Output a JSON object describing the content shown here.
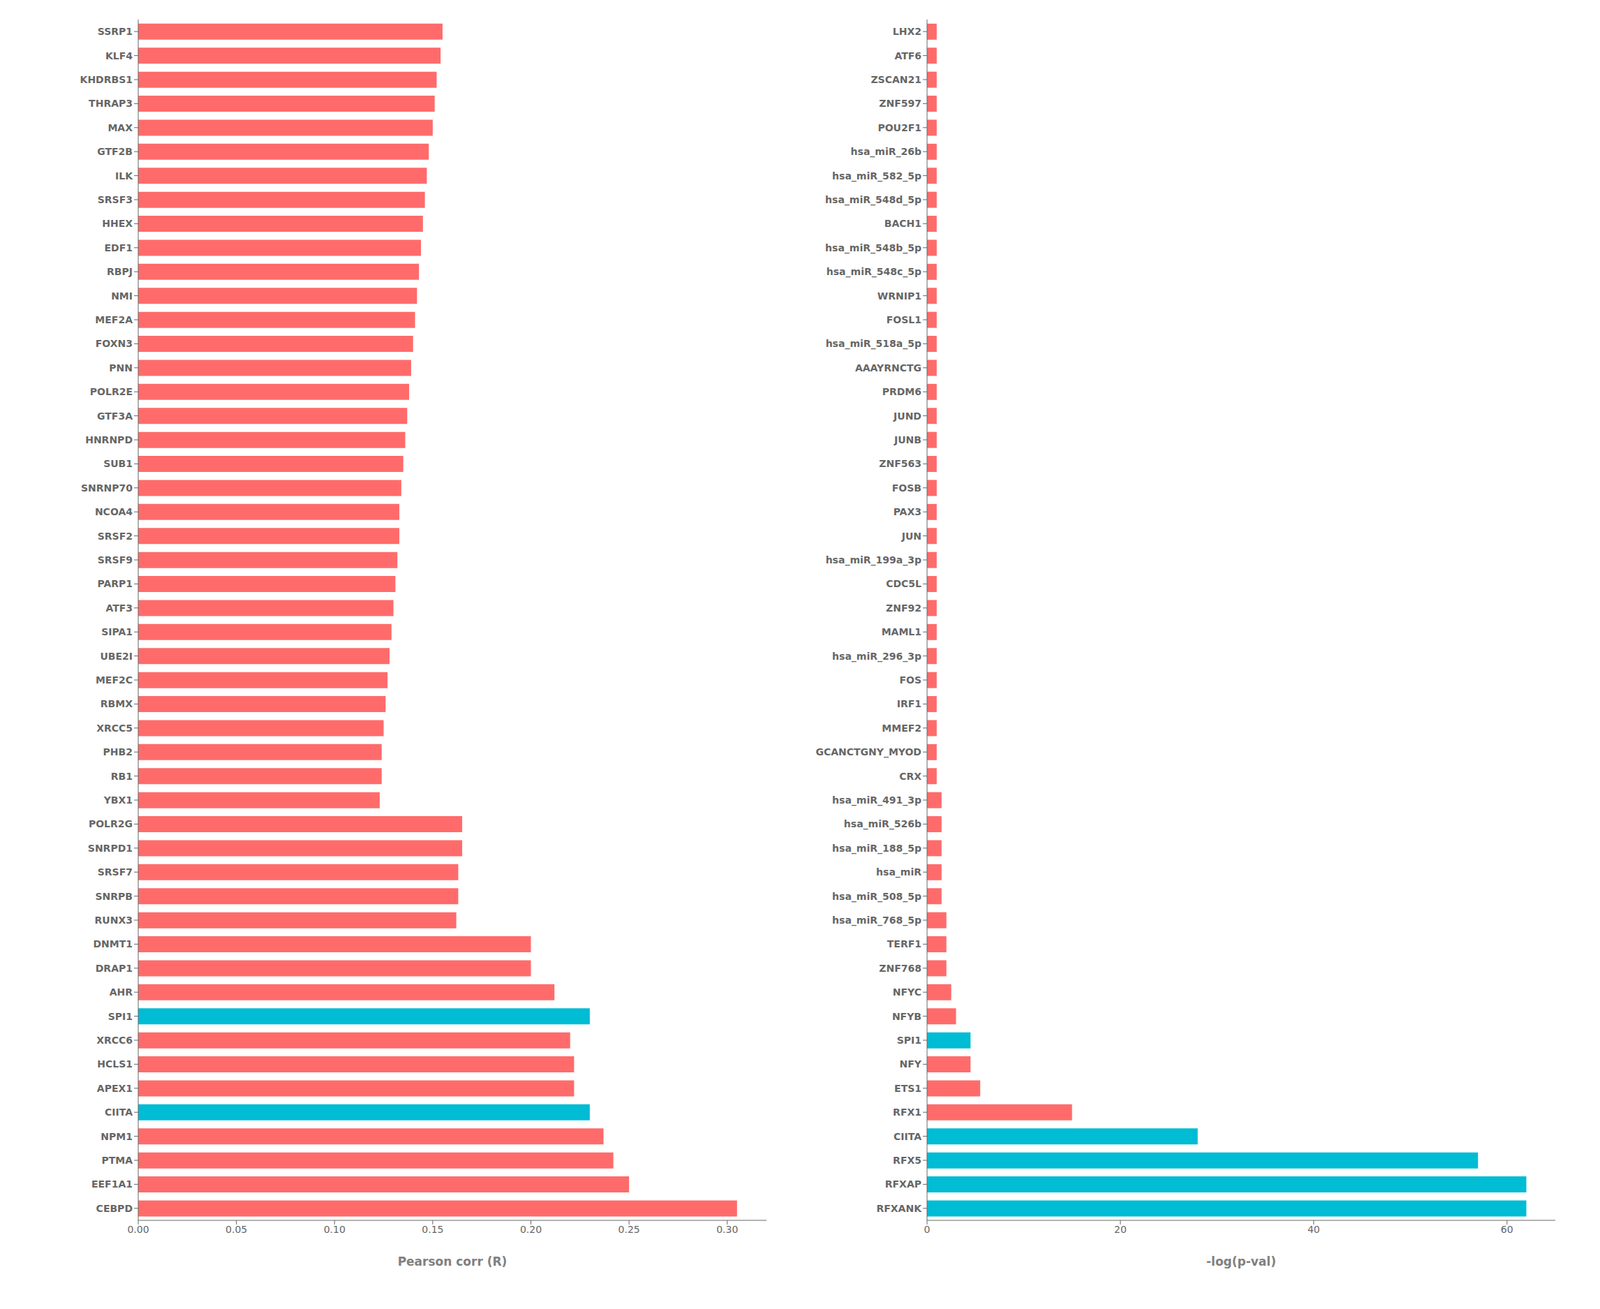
{
  "chart_data": [
    {
      "type": "bar",
      "orientation": "horizontal",
      "grid": false,
      "categories": [
        "SSRP1",
        "KLF4",
        "KHDRBS1",
        "THRAP3",
        "MAX",
        "GTF2B",
        "ILK",
        "SRSF3",
        "HHEX",
        "EDF1",
        "RBPJ",
        "NMI",
        "MEF2A",
        "FOXN3",
        "PNN",
        "POLR2E",
        "GTF3A",
        "HNRNPD",
        "SUB1",
        "SNRNP70",
        "NCOA4",
        "SRSF2",
        "SRSF9",
        "PARP1",
        "ATF3",
        "SIPA1",
        "UBE2I",
        "MEF2C",
        "RBMX",
        "XRCC5",
        "PHB2",
        "RB1",
        "YBX1",
        "POLR2G",
        "SNRPD1",
        "SRSF7",
        "SNRPB",
        "RUNX3",
        "DNMT1",
        "DRAP1",
        "AHR",
        "SPI1",
        "XRCC6",
        "HCLS1",
        "APEX1",
        "CIITA",
        "NPM1",
        "PTMA",
        "EEF1A1",
        "CEBPD"
      ],
      "values": [
        0.155,
        0.154,
        0.152,
        0.151,
        0.15,
        0.148,
        0.147,
        0.146,
        0.145,
        0.144,
        0.143,
        0.142,
        0.141,
        0.14,
        0.139,
        0.138,
        0.137,
        0.136,
        0.135,
        0.134,
        0.133,
        0.133,
        0.132,
        0.131,
        0.13,
        0.129,
        0.128,
        0.127,
        0.126,
        0.125,
        0.124,
        0.124,
        0.123,
        0.165,
        0.165,
        0.163,
        0.163,
        0.162,
        0.2,
        0.2,
        0.212,
        0.23,
        0.22,
        0.222,
        0.222,
        0.23,
        0.237,
        0.242,
        0.25,
        0.305
      ],
      "colors": [
        "#FF6B6B",
        "#FF6B6B",
        "#FF6B6B",
        "#FF6B6B",
        "#FF6B6B",
        "#FF6B6B",
        "#FF6B6B",
        "#FF6B6B",
        "#FF6B6B",
        "#FF6B6B",
        "#FF6B6B",
        "#FF6B6B",
        "#FF6B6B",
        "#FF6B6B",
        "#FF6B6B",
        "#FF6B6B",
        "#FF6B6B",
        "#FF6B6B",
        "#FF6B6B",
        "#FF6B6B",
        "#FF6B6B",
        "#FF6B6B",
        "#FF6B6B",
        "#FF6B6B",
        "#FF6B6B",
        "#FF6B6B",
        "#FF6B6B",
        "#FF6B6B",
        "#FF6B6B",
        "#FF6B6B",
        "#FF6B6B",
        "#FF6B6B",
        "#FF6B6B",
        "#FF6B6B",
        "#FF6B6B",
        "#FF6B6B",
        "#FF6B6B",
        "#FF6B6B",
        "#FF6B6B",
        "#FF6B6B",
        "#FF6B6B",
        "#00BCD4",
        "#FF6B6B",
        "#FF6B6B",
        "#FF6B6B",
        "#00BCD4",
        "#FF6B6B",
        "#FF6B6B",
        "#FF6B6B",
        "#FF6B6B"
      ],
      "xlabel": "Pearson corr (R)",
      "xlim": [
        0,
        0.32
      ],
      "xticks": [
        {
          "value": 0,
          "label": "0.00"
        },
        {
          "value": 0.05,
          "label": "0.05"
        },
        {
          "value": 0.1,
          "label": "0.10"
        },
        {
          "value": 0.15,
          "label": "0.15"
        },
        {
          "value": 0.2,
          "label": "0.20"
        },
        {
          "value": 0.25,
          "label": "0.25"
        },
        {
          "value": 0.3,
          "label": "0.30"
        }
      ]
    },
    {
      "type": "bar",
      "orientation": "horizontal",
      "grid": false,
      "categories": [
        "LHX2",
        "ATF6",
        "ZSCAN21",
        "ZNF597",
        "POU2F1",
        "hsa_miR_26b",
        "hsa_miR_582_5p",
        "hsa_miR_548d_5p",
        "BACH1",
        "hsa_miR_548b_5p",
        "hsa_miR_548c_5p",
        "WRNIP1",
        "FOSL1",
        "hsa_miR_518a_5p",
        "AAAYRNCTG",
        "PRDM6",
        "JUND",
        "JUNB",
        "ZNF563",
        "FOSB",
        "PAX3",
        "JUN",
        "hsa_miR_199a_3p",
        "CDC5L",
        "ZNF92",
        "MAML1",
        "hsa_miR_296_3p",
        "FOS",
        "IRF1",
        "MMEF2",
        "GCANCTGNY_MYOD",
        "CRX",
        "hsa_miR_491_3p",
        "hsa_miR_526b",
        "hsa_miR_188_5p",
        "hsa_miR",
        "hsa_miR_508_5p",
        "hsa_miR_768_5p",
        "TERF1",
        "ZNF768",
        "NFYC",
        "NFYB",
        "SPI1",
        "NFY",
        "ETS1",
        "RFX1",
        "CIITA",
        "RFX5",
        "RFXAP",
        "RFXANK"
      ],
      "values": [
        1.0,
        1.0,
        1.0,
        1.0,
        1.0,
        1.0,
        1.0,
        1.0,
        1.0,
        1.0,
        1.0,
        1.0,
        1.0,
        1.0,
        1.0,
        1.0,
        1.0,
        1.0,
        1.0,
        1.0,
        1.0,
        1.0,
        1.0,
        1.0,
        1.0,
        1.0,
        1.0,
        1.0,
        1.0,
        1.0,
        1.0,
        1.0,
        1.5,
        1.5,
        1.5,
        1.5,
        1.5,
        2.0,
        2.0,
        2.0,
        2.5,
        3.0,
        4.5,
        4.5,
        5.5,
        15.0,
        28.0,
        57.0,
        62.0,
        62.0
      ],
      "colors": [
        "#FF6B6B",
        "#FF6B6B",
        "#FF6B6B",
        "#FF6B6B",
        "#FF6B6B",
        "#FF6B6B",
        "#FF6B6B",
        "#FF6B6B",
        "#FF6B6B",
        "#FF6B6B",
        "#FF6B6B",
        "#FF6B6B",
        "#FF6B6B",
        "#FF6B6B",
        "#FF6B6B",
        "#FF6B6B",
        "#FF6B6B",
        "#FF6B6B",
        "#FF6B6B",
        "#FF6B6B",
        "#FF6B6B",
        "#FF6B6B",
        "#FF6B6B",
        "#FF6B6B",
        "#FF6B6B",
        "#FF6B6B",
        "#FF6B6B",
        "#FF6B6B",
        "#FF6B6B",
        "#FF6B6B",
        "#FF6B6B",
        "#FF6B6B",
        "#FF6B6B",
        "#FF6B6B",
        "#FF6B6B",
        "#FF6B6B",
        "#FF6B6B",
        "#FF6B6B",
        "#FF6B6B",
        "#FF6B6B",
        "#FF6B6B",
        "#FF6B6B",
        "#00BCD4",
        "#FF6B6B",
        "#FF6B6B",
        "#FF6B6B",
        "#00BCD4",
        "#00BCD4",
        "#00BCD4",
        "#00BCD4"
      ],
      "xlabel": "-log(p-val)",
      "xlim": [
        0,
        65
      ],
      "xticks": [
        0,
        20,
        40,
        60
      ]
    }
  ]
}
